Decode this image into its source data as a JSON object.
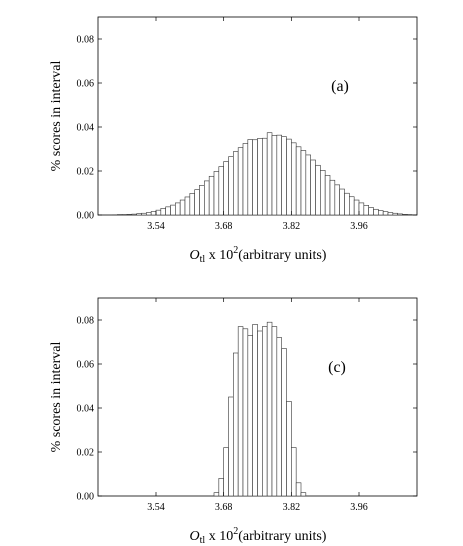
{
  "chart_data": [
    {
      "type": "bar",
      "panel_label": "(a)",
      "ylabel": "% scores in interval",
      "xlabel": {
        "symbol": "O",
        "subscript": "tl",
        "mid": " x 10",
        "sup": "2",
        "tail": "(arbitrary units)"
      },
      "xlim": [
        3.42,
        4.08
      ],
      "ylim": [
        0,
        0.09
      ],
      "xticks": [
        "3.54",
        "3.68",
        "3.82",
        "3.96"
      ],
      "yticks": [
        "0.00",
        "0.02",
        "0.04",
        "0.06",
        "0.08"
      ],
      "bin_width": 0.01,
      "bins_start": 3.45,
      "values": [
        0.0001,
        0.0002,
        0.0002,
        0.0003,
        0.0004,
        0.0006,
        0.0008,
        0.0011,
        0.0016,
        0.0022,
        0.003,
        0.0037,
        0.0045,
        0.0055,
        0.0068,
        0.0082,
        0.0098,
        0.0115,
        0.0135,
        0.0155,
        0.0176,
        0.0198,
        0.022,
        0.0243,
        0.0265,
        0.0288,
        0.0306,
        0.0325,
        0.0343,
        0.0342,
        0.0348,
        0.0349,
        0.0374,
        0.0361,
        0.0363,
        0.0356,
        0.0345,
        0.0328,
        0.031,
        0.0293,
        0.0273,
        0.025,
        0.0226,
        0.0203,
        0.018,
        0.0158,
        0.0137,
        0.0118,
        0.0099,
        0.0083,
        0.0068,
        0.0055,
        0.0044,
        0.0034,
        0.0026,
        0.002,
        0.0015,
        0.0011,
        0.0008,
        0.0005,
        0.0003,
        0.0002
      ]
    },
    {
      "type": "bar",
      "panel_label": "(c)",
      "ylabel": "% scores in interval",
      "xlabel": {
        "symbol": "O",
        "subscript": "tl",
        "mid": " x 10",
        "sup": "2",
        "tail": "(arbitrary units)"
      },
      "xlim": [
        3.42,
        4.08
      ],
      "ylim": [
        0,
        0.09
      ],
      "xticks": [
        "3.54",
        "3.68",
        "3.82",
        "3.96"
      ],
      "yticks": [
        "0.00",
        "0.02",
        "0.04",
        "0.06",
        "0.08"
      ],
      "bin_width": 0.01,
      "bins_start": 3.66,
      "values": [
        0.0015,
        0.008,
        0.022,
        0.045,
        0.065,
        0.077,
        0.076,
        0.073,
        0.078,
        0.075,
        0.077,
        0.079,
        0.077,
        0.072,
        0.067,
        0.043,
        0.022,
        0.006,
        0.0015
      ]
    }
  ]
}
